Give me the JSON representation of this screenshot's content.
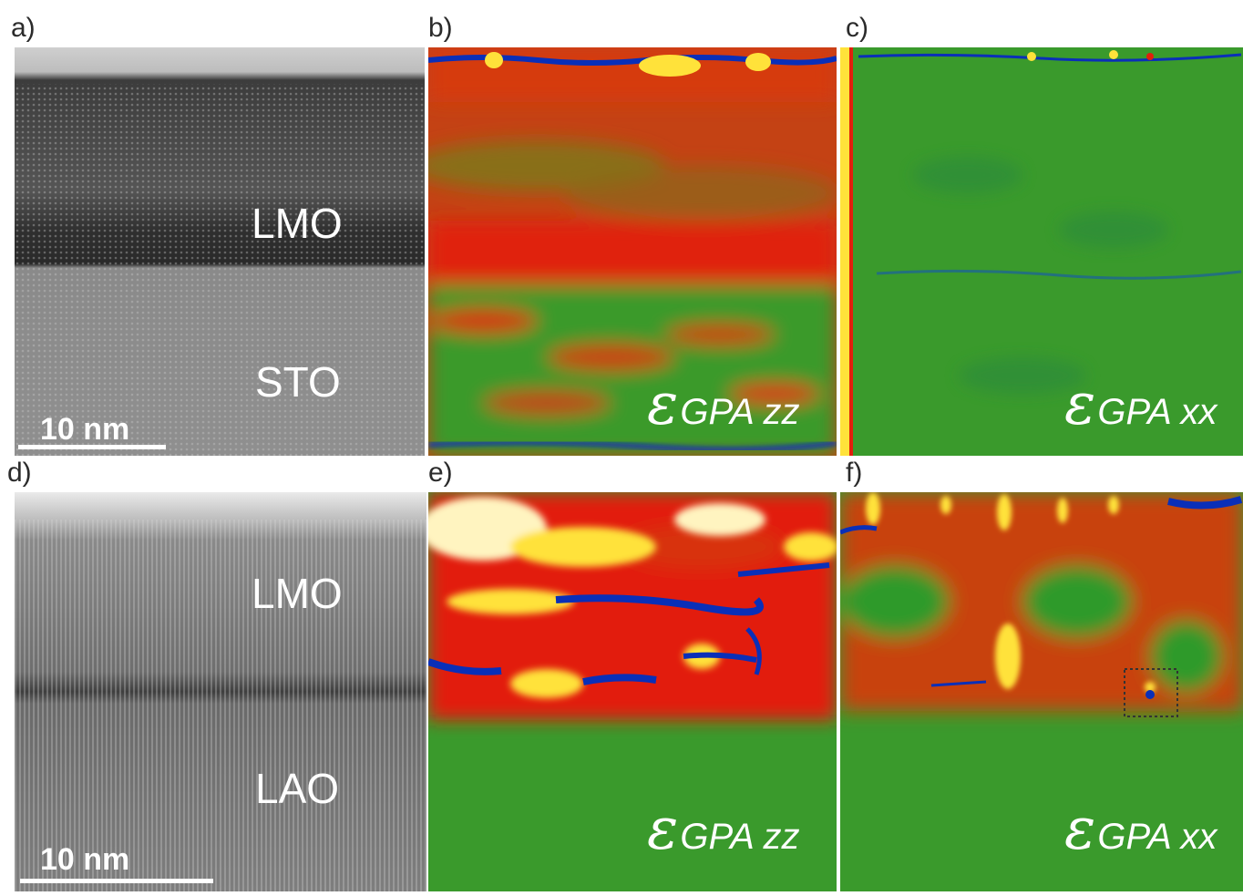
{
  "panels": [
    {
      "id": "a",
      "label": "a)",
      "type": "tem-image",
      "layers": [
        "LMO",
        "STO"
      ],
      "scale_bar": "10 nm"
    },
    {
      "id": "b",
      "label": "b)",
      "type": "strain-map",
      "component": "zz"
    },
    {
      "id": "c",
      "label": "c)",
      "type": "strain-map",
      "component": "xx"
    },
    {
      "id": "d",
      "label": "d)",
      "type": "tem-image",
      "layers": [
        "LMO",
        "LAO"
      ],
      "scale_bar": "10 nm"
    },
    {
      "id": "e",
      "label": "e)",
      "type": "strain-map",
      "component": "zz"
    },
    {
      "id": "f",
      "label": "f)",
      "type": "strain-map",
      "component": "xx"
    }
  ],
  "strain": {
    "symbol": "ε",
    "zz_sub": "GPA zz",
    "xx_sub": "GPA xx"
  },
  "colors": {
    "green": "#2e9a2a",
    "red": "#e21f0c",
    "yellow": "#ffe23a",
    "white": "#ffffff",
    "blue": "#0a2fb8"
  }
}
